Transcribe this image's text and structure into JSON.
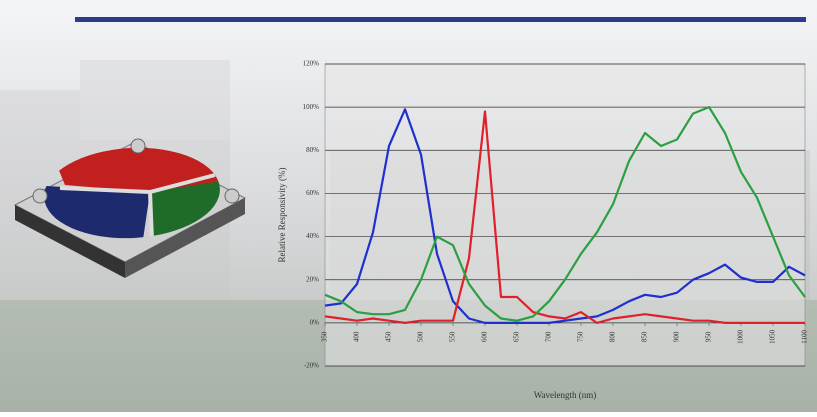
{
  "chart_data": {
    "type": "line",
    "x_label": "Wavelength (nm)",
    "y_label": "Relative Responsivity (%)",
    "x": [
      350,
      375,
      400,
      425,
      450,
      475,
      500,
      525,
      550,
      575,
      600,
      625,
      650,
      675,
      700,
      725,
      750,
      775,
      800,
      825,
      850,
      875,
      900,
      925,
      950,
      975,
      1000,
      1025,
      1050,
      1075,
      1100
    ],
    "series": [
      {
        "color": "#1f2fd0",
        "values": [
          8,
          9,
          18,
          42,
          82,
          99,
          78,
          32,
          10,
          2,
          0,
          0,
          0,
          0,
          0,
          1,
          2,
          3,
          6,
          10,
          13,
          12,
          14,
          20,
          23,
          27,
          21,
          19,
          19,
          26,
          22
        ]
      },
      {
        "color": "#e0202a",
        "values": [
          3,
          2,
          1,
          2,
          1,
          0,
          1,
          1,
          1,
          30,
          98,
          12,
          12,
          5,
          3,
          2,
          5,
          0,
          2,
          3,
          4,
          3,
          2,
          1,
          1,
          0,
          0,
          0,
          0,
          0,
          0
        ]
      },
      {
        "color": "#2aa040",
        "values": [
          13,
          10,
          5,
          4,
          4,
          6,
          20,
          40,
          36,
          18,
          8,
          2,
          1,
          3,
          10,
          20,
          32,
          42,
          55,
          75,
          88,
          82,
          85,
          97,
          100,
          88,
          70,
          58,
          40,
          22,
          12
        ]
      }
    ],
    "xlim": [
      350,
      1100
    ],
    "xticks": [
      350,
      400,
      450,
      500,
      550,
      600,
      650,
      700,
      750,
      800,
      850,
      900,
      950,
      1000,
      1050,
      1100
    ],
    "ylim": [
      -20,
      120
    ],
    "yticks": [
      {
        "value": -20,
        "label": "-20%"
      },
      {
        "value": 0,
        "label": "0%"
      },
      {
        "value": 20,
        "label": "20%"
      },
      {
        "value": 40,
        "label": "40%"
      },
      {
        "value": 60,
        "label": "60%"
      },
      {
        "value": 80,
        "label": "80%"
      },
      {
        "value": 100,
        "label": "100%"
      },
      {
        "value": 120,
        "label": "120%"
      }
    ],
    "grid": true
  }
}
